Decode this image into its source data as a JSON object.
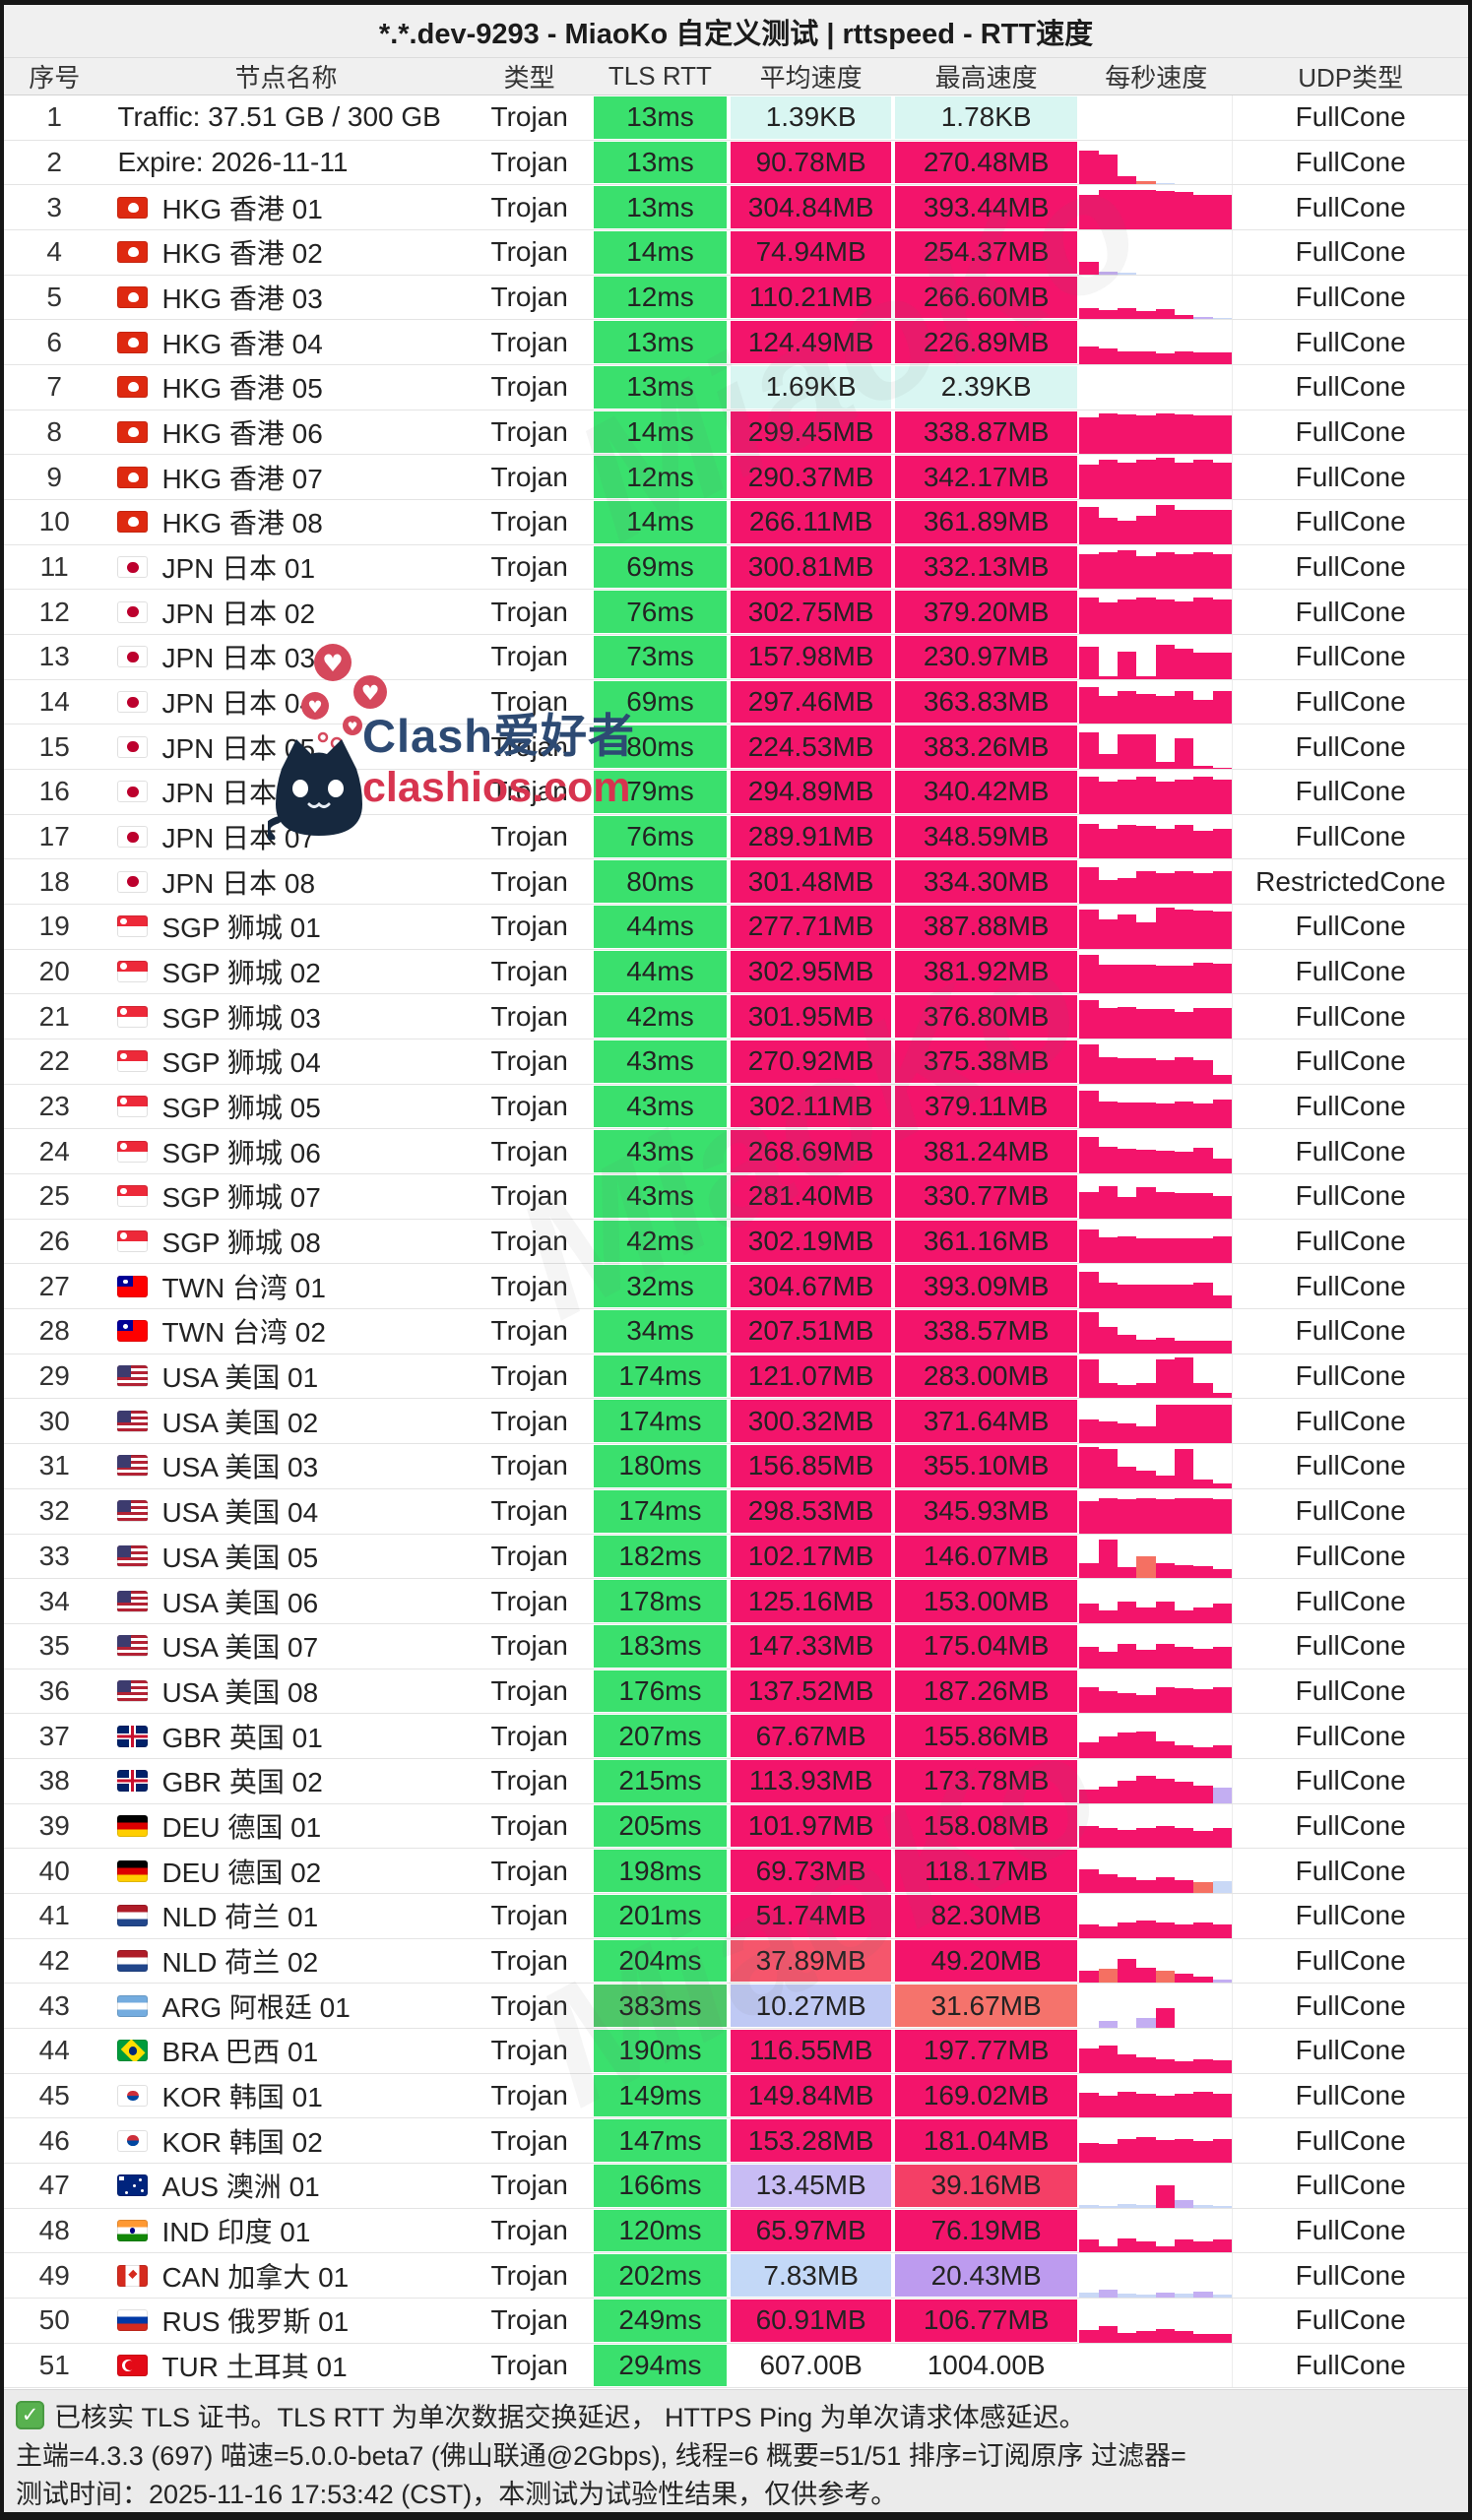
{
  "title": "*.*.dev-9293 - MiaoKo 自定义测试 | rttspeed - RTT速度",
  "columns": [
    "序号",
    "节点名称",
    "类型",
    "TLS RTT",
    "平均速度",
    "最高速度",
    "每秒速度",
    "UDP类型"
  ],
  "colors": {
    "palette": {
      "green": "#3ae06d",
      "greendark": "#4ec768",
      "pink": "#f3146b",
      "cyan": "#d9f6f2",
      "salmon42": "#f5566c",
      "peri": "#bfc9f4",
      "coral": "#f5736c",
      "lav": "#c8bcf4",
      "rose": "#f43f66",
      "lblue": "#c3d8f7",
      "purple": "#bd9bef",
      "none": "transparent",
      "salmon": "#f57062",
      "barpurple": "#c3aef2",
      "barblue": "#c9d8f6"
    },
    "accent_green": "#3ae06d",
    "accent_pink": "#f3146b"
  },
  "watermark": {
    "line1": "Clash爱好者",
    "line2": "clashios.com",
    "diagonal": "MiaoKo"
  },
  "footer": {
    "check_icon": "✓",
    "line1": "已核实 TLS 证书。TLS RTT 为单次数据交换延迟， HTTPS Ping 为单次请求体感延迟。",
    "line2": "主端=4.3.3 (697) 喵速=5.0.0-beta7 (佛山联通@2Gbps), 线程=6 概要=51/51 排序=订阅原序 过滤器=",
    "line3": "测试时间：2025-11-16 17:53:42 (CST)，本测试为试验性结果，仅供参考。"
  },
  "rows": [
    {
      "n": 1,
      "flag": null,
      "name": "Traffic: 37.51 GB / 300 GB",
      "type": "Trojan",
      "rtt": "13ms",
      "avg": "1.39KB",
      "max": "1.78KB",
      "udp": "FullCone",
      "at": "cyan",
      "mt": "cyan",
      "bars": []
    },
    {
      "n": 2,
      "flag": null,
      "name": "Expire: 2026-11-11",
      "type": "Trojan",
      "rtt": "13ms",
      "avg": "90.78MB",
      "max": "270.48MB",
      "udp": "FullCone",
      "bars": [
        0.78,
        0.7,
        0.2,
        0.08,
        0.03,
        0,
        0,
        0
      ],
      "bc": [
        null,
        null,
        null,
        "salmon",
        "barblue",
        null,
        null,
        null
      ]
    },
    {
      "n": 3,
      "flag": "hkg",
      "name": "HKG 香港 01",
      "type": "Trojan",
      "rtt": "13ms",
      "avg": "304.84MB",
      "max": "393.44MB",
      "udp": "FullCone",
      "bars": [
        0.8,
        0.92,
        0.9,
        0.9,
        0.88,
        0.86,
        0.8,
        0.8
      ]
    },
    {
      "n": 4,
      "flag": "hkg",
      "name": "HKG 香港 02",
      "type": "Trojan",
      "rtt": "14ms",
      "avg": "74.94MB",
      "max": "254.37MB",
      "udp": "FullCone",
      "bars": [
        0.28,
        0.07,
        0.03,
        0,
        0,
        0,
        0,
        0
      ],
      "bc": [
        null,
        "barpurple",
        "barblue",
        null,
        null,
        null,
        null,
        null
      ]
    },
    {
      "n": 5,
      "flag": "hkg",
      "name": "HKG 香港 03",
      "type": "Trojan",
      "rtt": "12ms",
      "avg": "110.21MB",
      "max": "266.60MB",
      "udp": "FullCone",
      "bars": [
        0.25,
        0.22,
        0.26,
        0.18,
        0.24,
        0.1,
        0.05,
        0.02
      ],
      "bc": [
        null,
        null,
        null,
        null,
        null,
        null,
        "barpurple",
        "barblue"
      ]
    },
    {
      "n": 6,
      "flag": "hkg",
      "name": "HKG 香港 04",
      "type": "Trojan",
      "rtt": "13ms",
      "avg": "124.49MB",
      "max": "226.89MB",
      "udp": "FullCone",
      "bars": [
        0.42,
        0.36,
        0.3,
        0.3,
        0.26,
        0.3,
        0.28,
        0.28
      ]
    },
    {
      "n": 7,
      "flag": "hkg",
      "name": "HKG 香港 05",
      "type": "Trojan",
      "rtt": "13ms",
      "avg": "1.69KB",
      "max": "2.39KB",
      "udp": "FullCone",
      "at": "cyan",
      "mt": "cyan",
      "bars": []
    },
    {
      "n": 8,
      "flag": "hkg",
      "name": "HKG 香港 06",
      "type": "Trojan",
      "rtt": "14ms",
      "avg": "299.45MB",
      "max": "338.87MB",
      "udp": "FullCone",
      "bars": [
        0.85,
        0.95,
        0.92,
        0.9,
        0.95,
        0.92,
        0.9,
        0.9
      ]
    },
    {
      "n": 9,
      "flag": "hkg",
      "name": "HKG 香港 07",
      "type": "Trojan",
      "rtt": "12ms",
      "avg": "290.37MB",
      "max": "342.17MB",
      "udp": "FullCone",
      "bars": [
        0.8,
        0.9,
        0.85,
        0.9,
        0.95,
        0.85,
        0.9,
        0.85
      ]
    },
    {
      "n": 10,
      "flag": "hkg",
      "name": "HKG 香港 08",
      "type": "Trojan",
      "rtt": "14ms",
      "avg": "266.11MB",
      "max": "361.89MB",
      "udp": "FullCone",
      "bars": [
        0.85,
        0.6,
        0.55,
        0.65,
        0.9,
        0.8,
        0.8,
        0.8
      ]
    },
    {
      "n": 11,
      "flag": "jpn",
      "name": "JPN 日本 01",
      "type": "Trojan",
      "rtt": "69ms",
      "avg": "300.81MB",
      "max": "332.13MB",
      "udp": "FullCone",
      "bars": [
        0.8,
        0.85,
        0.9,
        0.75,
        0.85,
        0.8,
        0.85,
        0.8
      ]
    },
    {
      "n": 12,
      "flag": "jpn",
      "name": "JPN 日本 02",
      "type": "Trojan",
      "rtt": "76ms",
      "avg": "302.75MB",
      "max": "379.20MB",
      "udp": "FullCone",
      "bars": [
        0.85,
        0.72,
        0.8,
        0.85,
        0.8,
        0.75,
        0.85,
        0.8
      ]
    },
    {
      "n": 13,
      "flag": "jpn",
      "name": "JPN 日本 03",
      "type": "Trojan",
      "rtt": "73ms",
      "avg": "157.98MB",
      "max": "230.97MB",
      "udp": "FullCone",
      "bars": [
        0.75,
        0.06,
        0.62,
        0.06,
        0.8,
        0.7,
        0.6,
        0.6
      ]
    },
    {
      "n": 14,
      "flag": "jpn",
      "name": "JPN 日本 04",
      "type": "Trojan",
      "rtt": "69ms",
      "avg": "297.46MB",
      "max": "363.83MB",
      "udp": "FullCone",
      "bars": [
        0.85,
        0.65,
        0.75,
        0.7,
        0.65,
        0.75,
        0.55,
        0.75
      ]
    },
    {
      "n": 15,
      "flag": "jpn",
      "name": "JPN 日本 05",
      "type": "Trojan",
      "rtt": "80ms",
      "avg": "224.53MB",
      "max": "383.26MB",
      "udp": "FullCone",
      "bars": [
        0.85,
        0.35,
        0.8,
        0.8,
        0.15,
        0.7,
        0.08,
        0.03
      ]
    },
    {
      "n": 16,
      "flag": "jpn",
      "name": "JPN 日本 06",
      "type": "Trojan",
      "rtt": "79ms",
      "avg": "294.89MB",
      "max": "340.42MB",
      "udp": "FullCone",
      "bars": [
        0.85,
        0.75,
        0.8,
        0.85,
        0.75,
        0.8,
        0.85,
        0.8
      ]
    },
    {
      "n": 17,
      "flag": "jpn",
      "name": "JPN 日本 07",
      "type": "Trojan",
      "rtt": "76ms",
      "avg": "289.91MB",
      "max": "348.59MB",
      "udp": "FullCone",
      "bars": [
        0.8,
        0.7,
        0.78,
        0.75,
        0.7,
        0.78,
        0.65,
        0.7
      ]
    },
    {
      "n": 18,
      "flag": "jpn",
      "name": "JPN 日本 08",
      "type": "Trojan",
      "rtt": "80ms",
      "avg": "301.48MB",
      "max": "334.30MB",
      "udp": "RestrictedCone",
      "bars": [
        0.85,
        0.55,
        0.6,
        0.75,
        0.7,
        0.75,
        0.7,
        0.75
      ]
    },
    {
      "n": 19,
      "flag": "sgp",
      "name": "SGP 狮城 01",
      "type": "Trojan",
      "rtt": "44ms",
      "avg": "277.71MB",
      "max": "387.88MB",
      "udp": "FullCone",
      "bars": [
        0.9,
        0.68,
        0.78,
        0.62,
        0.95,
        0.9,
        0.88,
        0.85
      ]
    },
    {
      "n": 20,
      "flag": "sgp",
      "name": "SGP 狮城 02",
      "type": "Trojan",
      "rtt": "44ms",
      "avg": "302.95MB",
      "max": "381.92MB",
      "udp": "FullCone",
      "bars": [
        0.9,
        0.68,
        0.66,
        0.66,
        0.65,
        0.65,
        0.72,
        0.7
      ]
    },
    {
      "n": 21,
      "flag": "sgp",
      "name": "SGP 狮城 03",
      "type": "Trojan",
      "rtt": "42ms",
      "avg": "301.95MB",
      "max": "376.80MB",
      "udp": "FullCone",
      "bars": [
        0.88,
        0.7,
        0.72,
        0.68,
        0.68,
        0.62,
        0.7,
        0.7
      ]
    },
    {
      "n": 22,
      "flag": "sgp",
      "name": "SGP 狮城 04",
      "type": "Trojan",
      "rtt": "43ms",
      "avg": "270.92MB",
      "max": "375.38MB",
      "udp": "FullCone",
      "bars": [
        0.9,
        0.6,
        0.58,
        0.58,
        0.55,
        0.62,
        0.55,
        0.2
      ]
    },
    {
      "n": 23,
      "flag": "sgp",
      "name": "SGP 狮城 05",
      "type": "Trojan",
      "rtt": "43ms",
      "avg": "302.11MB",
      "max": "379.11MB",
      "udp": "FullCone",
      "bars": [
        0.88,
        0.62,
        0.6,
        0.6,
        0.58,
        0.62,
        0.58,
        0.68
      ]
    },
    {
      "n": 24,
      "flag": "sgp",
      "name": "SGP 狮城 06",
      "type": "Trojan",
      "rtt": "43ms",
      "avg": "268.69MB",
      "max": "381.24MB",
      "udp": "FullCone",
      "bars": [
        0.85,
        0.62,
        0.58,
        0.55,
        0.52,
        0.5,
        0.6,
        0.35
      ]
    },
    {
      "n": 25,
      "flag": "sgp",
      "name": "SGP 狮城 07",
      "type": "Trojan",
      "rtt": "43ms",
      "avg": "281.40MB",
      "max": "330.77MB",
      "udp": "FullCone",
      "bars": [
        0.6,
        0.75,
        0.5,
        0.72,
        0.6,
        0.58,
        0.58,
        0.52
      ]
    },
    {
      "n": 26,
      "flag": "sgp",
      "name": "SGP 狮城 08",
      "type": "Trojan",
      "rtt": "42ms",
      "avg": "302.19MB",
      "max": "361.16MB",
      "udp": "FullCone",
      "bars": [
        0.78,
        0.6,
        0.62,
        0.58,
        0.58,
        0.58,
        0.58,
        0.62
      ]
    },
    {
      "n": 27,
      "flag": "twn",
      "name": "TWN 台湾 01",
      "type": "Trojan",
      "rtt": "32ms",
      "avg": "304.67MB",
      "max": "393.09MB",
      "udp": "FullCone",
      "bars": [
        0.85,
        0.6,
        0.55,
        0.55,
        0.55,
        0.55,
        0.6,
        0.3
      ]
    },
    {
      "n": 28,
      "flag": "twn",
      "name": "TWN 台湾 02",
      "type": "Trojan",
      "rtt": "34ms",
      "avg": "207.51MB",
      "max": "338.57MB",
      "udp": "FullCone",
      "bars": [
        0.95,
        0.6,
        0.42,
        0.32,
        0.35,
        0.3,
        0.3,
        0.3
      ]
    },
    {
      "n": 29,
      "flag": "usa",
      "name": "USA 美国 01",
      "type": "Trojan",
      "rtt": "174ms",
      "avg": "121.07MB",
      "max": "283.00MB",
      "udp": "FullCone",
      "bars": [
        0.9,
        0.35,
        0.3,
        0.35,
        0.9,
        0.95,
        0.35,
        0.12
      ]
    },
    {
      "n": 30,
      "flag": "usa",
      "name": "USA 美国 02",
      "type": "Trojan",
      "rtt": "174ms",
      "avg": "300.32MB",
      "max": "371.64MB",
      "udp": "FullCone",
      "bars": [
        0.55,
        0.5,
        0.45,
        0.4,
        0.9,
        0.9,
        0.9,
        0.9
      ]
    },
    {
      "n": 31,
      "flag": "usa",
      "name": "USA 美国 03",
      "type": "Trojan",
      "rtt": "180ms",
      "avg": "156.85MB",
      "max": "355.10MB",
      "udp": "FullCone",
      "bars": [
        0.95,
        0.9,
        0.5,
        0.4,
        0.3,
        0.9,
        0.2,
        0.1
      ]
    },
    {
      "n": 32,
      "flag": "usa",
      "name": "USA 美国 04",
      "type": "Trojan",
      "rtt": "174ms",
      "avg": "298.53MB",
      "max": "345.93MB",
      "udp": "FullCone",
      "bars": [
        0.75,
        0.8,
        0.78,
        0.8,
        0.78,
        0.8,
        0.8,
        0.78
      ]
    },
    {
      "n": 33,
      "flag": "usa",
      "name": "USA 美国 05",
      "type": "Trojan",
      "rtt": "182ms",
      "avg": "102.17MB",
      "max": "146.07MB",
      "udp": "FullCone",
      "bars": [
        0.35,
        0.9,
        0.25,
        0.5,
        0.35,
        0.3,
        0.28,
        0.22
      ],
      "bc": [
        null,
        null,
        null,
        "salmon",
        null,
        null,
        null,
        null
      ]
    },
    {
      "n": 34,
      "flag": "usa",
      "name": "USA 美国 06",
      "type": "Trojan",
      "rtt": "178ms",
      "avg": "125.16MB",
      "max": "153.00MB",
      "udp": "FullCone",
      "bars": [
        0.45,
        0.3,
        0.5,
        0.35,
        0.5,
        0.3,
        0.35,
        0.45
      ]
    },
    {
      "n": 35,
      "flag": "usa",
      "name": "USA 美国 07",
      "type": "Trojan",
      "rtt": "183ms",
      "avg": "147.33MB",
      "max": "175.04MB",
      "udp": "FullCone",
      "bars": [
        0.5,
        0.38,
        0.55,
        0.42,
        0.55,
        0.5,
        0.45,
        0.5
      ]
    },
    {
      "n": 36,
      "flag": "usa",
      "name": "USA 美国 08",
      "type": "Trojan",
      "rtt": "176ms",
      "avg": "137.52MB",
      "max": "187.26MB",
      "udp": "FullCone",
      "bars": [
        0.6,
        0.5,
        0.45,
        0.42,
        0.6,
        0.58,
        0.55,
        0.6
      ]
    },
    {
      "n": 37,
      "flag": "gbr",
      "name": "GBR 英国 01",
      "type": "Trojan",
      "rtt": "207ms",
      "avg": "67.67MB",
      "max": "155.86MB",
      "udp": "FullCone",
      "bars": [
        0.35,
        0.5,
        0.58,
        0.62,
        0.38,
        0.3,
        0.25,
        0.3
      ]
    },
    {
      "n": 38,
      "flag": "gbr",
      "name": "GBR 英国 02",
      "type": "Trojan",
      "rtt": "215ms",
      "avg": "113.93MB",
      "max": "173.78MB",
      "udp": "FullCone",
      "bars": [
        0.3,
        0.38,
        0.52,
        0.62,
        0.55,
        0.5,
        0.4,
        0.35
      ],
      "bc": [
        null,
        null,
        null,
        null,
        null,
        null,
        null,
        "barpurple"
      ]
    },
    {
      "n": 39,
      "flag": "deu",
      "name": "DEU 德国 01",
      "type": "Trojan",
      "rtt": "205ms",
      "avg": "101.97MB",
      "max": "158.08MB",
      "udp": "FullCone",
      "bars": [
        0.5,
        0.45,
        0.42,
        0.46,
        0.5,
        0.45,
        0.4,
        0.45
      ]
    },
    {
      "n": 40,
      "flag": "deu",
      "name": "DEU 德国 02",
      "type": "Trojan",
      "rtt": "198ms",
      "avg": "69.73MB",
      "max": "118.17MB",
      "udp": "FullCone",
      "bars": [
        0.55,
        0.42,
        0.35,
        0.3,
        0.35,
        0.3,
        0.25,
        0.28
      ],
      "bc": [
        null,
        null,
        null,
        null,
        null,
        null,
        "salmon",
        "barblue"
      ]
    },
    {
      "n": 41,
      "flag": "nld",
      "name": "NLD 荷兰 01",
      "type": "Trojan",
      "rtt": "201ms",
      "avg": "51.74MB",
      "max": "82.30MB",
      "udp": "FullCone",
      "bars": [
        0.3,
        0.26,
        0.35,
        0.4,
        0.35,
        0.3,
        0.35,
        0.3
      ]
    },
    {
      "n": 42,
      "flag": "nld",
      "name": "NLD 荷兰 02",
      "type": "Trojan",
      "rtt": "204ms",
      "avg": "37.89MB",
      "max": "49.20MB",
      "udp": "FullCone",
      "at": "salmon42",
      "bars": [
        0.28,
        0.32,
        0.55,
        0.35,
        0.28,
        0.22,
        0.15,
        0.08
      ],
      "bc": [
        null,
        "salmon",
        null,
        null,
        "salmon",
        null,
        null,
        "barpurple"
      ]
    },
    {
      "n": 43,
      "flag": "arg",
      "name": "ARG 阿根廷 01",
      "type": "Trojan",
      "rtt": "383ms",
      "avg": "10.27MB",
      "max": "31.67MB",
      "udp": "FullCone",
      "rt": "greendark",
      "at": "peri",
      "mt": "coral",
      "bars": [
        0,
        0.15,
        0,
        0.22,
        0.45,
        0,
        0,
        0
      ],
      "bc": [
        null,
        "barpurple",
        null,
        "barpurple",
        null,
        null,
        null,
        null
      ]
    },
    {
      "n": 44,
      "flag": "bra",
      "name": "BRA 巴西 01",
      "type": "Trojan",
      "rtt": "190ms",
      "avg": "116.55MB",
      "max": "197.77MB",
      "udp": "FullCone",
      "bars": [
        0.55,
        0.62,
        0.42,
        0.35,
        0.3,
        0.26,
        0.3,
        0.28
      ]
    },
    {
      "n": 45,
      "flag": "kor",
      "name": "KOR 韩国 01",
      "type": "Trojan",
      "rtt": "149ms",
      "avg": "149.84MB",
      "max": "169.02MB",
      "udp": "FullCone",
      "bars": [
        0.58,
        0.5,
        0.6,
        0.55,
        0.5,
        0.55,
        0.6,
        0.55
      ]
    },
    {
      "n": 46,
      "flag": "kor",
      "name": "KOR 韩国 02",
      "type": "Trojan",
      "rtt": "147ms",
      "avg": "153.28MB",
      "max": "181.04MB",
      "udp": "FullCone",
      "bars": [
        0.45,
        0.42,
        0.55,
        0.6,
        0.52,
        0.55,
        0.5,
        0.55
      ]
    },
    {
      "n": 47,
      "flag": "aus",
      "name": "AUS 澳洲 01",
      "type": "Trojan",
      "rtt": "166ms",
      "avg": "13.45MB",
      "max": "39.16MB",
      "udp": "FullCone",
      "at": "lav",
      "mt": "rose",
      "bars": [
        0.06,
        0.04,
        0.08,
        0.06,
        0.52,
        0.18,
        0.06,
        0.04
      ],
      "bc": [
        "barblue",
        "barblue",
        "barblue",
        "barblue",
        null,
        "barpurple",
        "barblue",
        "barblue"
      ]
    },
    {
      "n": 48,
      "flag": "ind",
      "name": "IND 印度 01",
      "type": "Trojan",
      "rtt": "120ms",
      "avg": "65.97MB",
      "max": "76.19MB",
      "udp": "FullCone",
      "bars": [
        0.3,
        0.15,
        0.32,
        0.25,
        0.15,
        0.3,
        0.25,
        0.3
      ]
    },
    {
      "n": 49,
      "flag": "can",
      "name": "CAN 加拿大 01",
      "type": "Trojan",
      "rtt": "202ms",
      "avg": "7.83MB",
      "max": "20.43MB",
      "udp": "FullCone",
      "at": "lblue",
      "mt": "purple",
      "bars": [
        0.12,
        0.18,
        0.1,
        0.06,
        0.12,
        0.1,
        0.14,
        0.06
      ],
      "bc": [
        "barblue",
        "barpurple",
        "barblue",
        "barblue",
        "barpurple",
        "barblue",
        "barpurple",
        "barblue"
      ]
    },
    {
      "n": 50,
      "flag": "rus",
      "name": "RUS 俄罗斯 01",
      "type": "Trojan",
      "rtt": "249ms",
      "avg": "60.91MB",
      "max": "106.77MB",
      "udp": "FullCone",
      "bars": [
        0.28,
        0.38,
        0.22,
        0.26,
        0.32,
        0.26,
        0.2,
        0.2
      ]
    },
    {
      "n": 51,
      "flag": "tur",
      "name": "TUR 土耳其 01",
      "type": "Trojan",
      "rtt": "294ms",
      "avg": "607.00B",
      "max": "1004.00B",
      "udp": "FullCone",
      "at": "none",
      "mt": "none",
      "bars": []
    }
  ]
}
